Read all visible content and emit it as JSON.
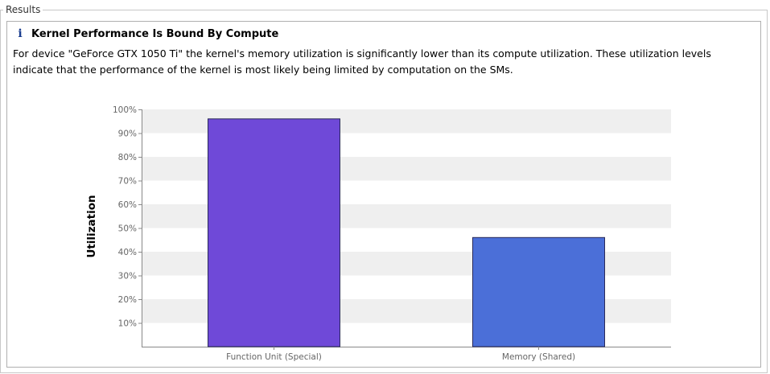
{
  "section_title": "Results",
  "panel": {
    "icon": "info-icon",
    "icon_glyph": "i",
    "title": "Kernel Performance Is Bound By Compute",
    "description": "For device \"GeForce GTX 1050 Ti\" the kernel's memory utilization is significantly lower than its compute utilization. These utilization levels indicate that the performance of the kernel is most likely being limited by computation on the SMs."
  },
  "chart_data": {
    "type": "bar",
    "categories": [
      "Function Unit (Special)",
      "Memory (Shared)"
    ],
    "values": [
      96,
      46
    ],
    "colors": [
      "#6f49d8",
      "#4b6fd8"
    ],
    "ylabel": "Utilization",
    "xlabel": "",
    "title": "",
    "ylim": [
      0,
      100
    ],
    "yticks": [
      "10%",
      "20%",
      "30%",
      "40%",
      "50%",
      "60%",
      "70%",
      "80%",
      "90%",
      "100%"
    ],
    "grid": "alternating-bands"
  }
}
